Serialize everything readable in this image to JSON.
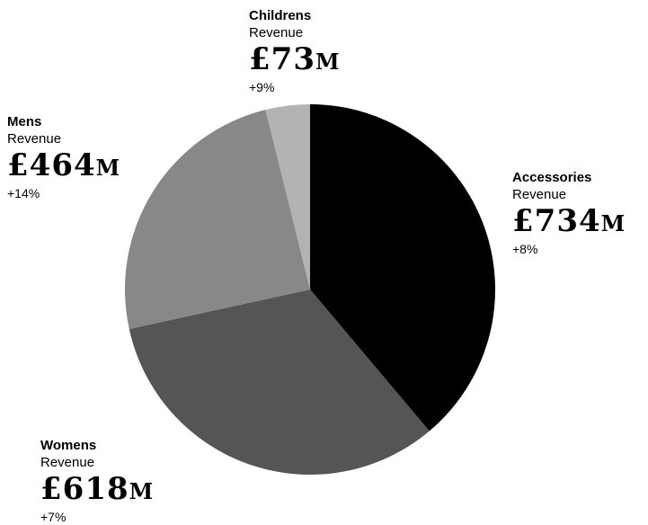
{
  "chart_data": {
    "type": "pie",
    "categories": [
      "Accessories",
      "Womens",
      "Mens",
      "Childrens"
    ],
    "values": [
      734,
      618,
      464,
      73
    ],
    "value_label": "Revenue",
    "currency_symbol": "£",
    "unit": "M",
    "changes": [
      "+8%",
      "+7%",
      "+14%",
      "+9%"
    ],
    "colors": [
      "#000000",
      "#555555",
      "#888888",
      "#b3b3b3"
    ],
    "start": "12 o'clock",
    "direction": "clockwise"
  },
  "labels": [
    {
      "category": "Accessories",
      "measure": "Revenue",
      "currency": "£",
      "amount": "734",
      "unit": "M",
      "change": "+8%"
    },
    {
      "category": "Womens",
      "measure": "Revenue",
      "currency": "£",
      "amount": "618",
      "unit": "M",
      "change": "+7%"
    },
    {
      "category": "Mens",
      "measure": "Revenue",
      "currency": "£",
      "amount": "464",
      "unit": "M",
      "change": "+14%"
    },
    {
      "category": "Childrens",
      "measure": "Revenue",
      "currency": "£",
      "amount": "73",
      "unit": "M",
      "change": "+9%"
    }
  ]
}
